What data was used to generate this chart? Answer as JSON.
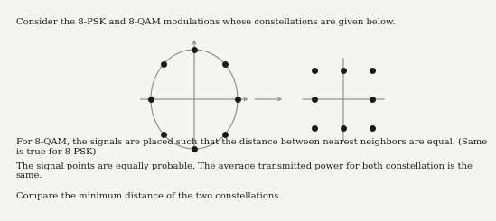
{
  "title_text": "Consider the 8-PSK and 8-QAM modulations whose constellations are given below.",
  "body_texts": [
    "For 8-QAM, the signals are placed such that the distance between nearest neighbors are equal. (Same\nis true for 8-PSK)",
    "The signal points are equally probable. The average transmitted power for both constellation is the\nsame.",
    "Compare the minimum distance of the two constellations."
  ],
  "dot_color": "#1a1a1a",
  "line_color": "#888888",
  "circle_color": "#888888",
  "background_color": "#f5f5f0",
  "text_color": "#1a1a1a",
  "title_fontsize": 7.2,
  "body_fontsize": 7.2
}
